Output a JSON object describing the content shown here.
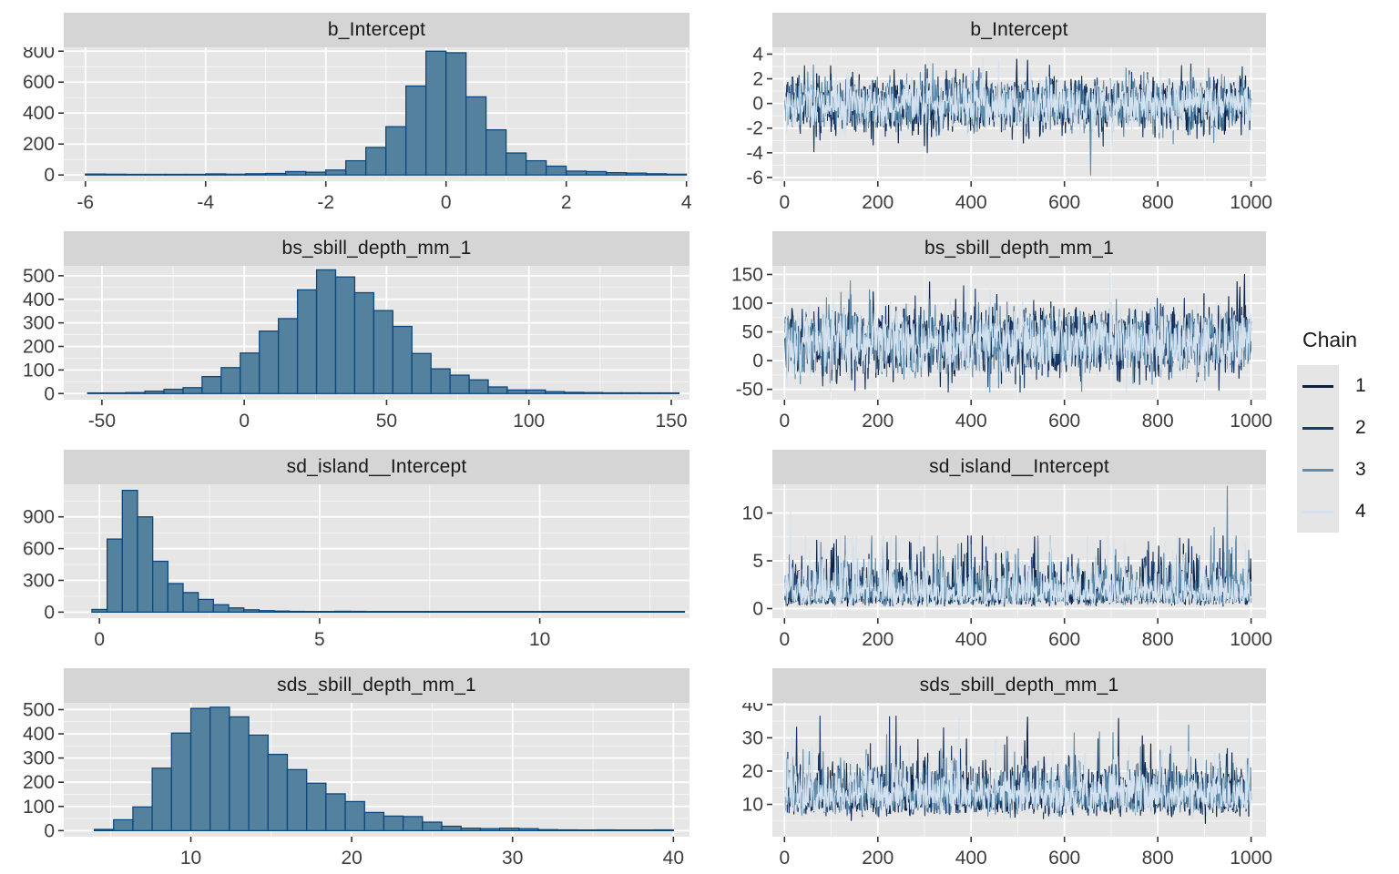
{
  "page": {
    "background": "#ffffff",
    "description": "MCMC posterior diagnostic plots (brms/bayesplot style): histograms of posterior draws (left column) and per-chain trace plots (right column) for four model parameters"
  },
  "chart_data": {
    "type": "table",
    "subtype": "mcmc-histogram-and-trace-grid",
    "grid": "4 rows x 2 columns",
    "palette": {
      "hist_fill": "#54829e",
      "hist_stroke": "#0c477e",
      "chains": [
        "#0b2144",
        "#1a3a69",
        "#5f8dac",
        "#d3e2ee"
      ],
      "panel_bg": "#e6e6e6",
      "grid_major": "#ffffff",
      "strip_bg": "#d5d5d5",
      "axis_text": "#3d3d3d"
    },
    "legend": {
      "title": "Chain",
      "entries": [
        {
          "label": "1",
          "color": "#0b2144"
        },
        {
          "label": "2",
          "color": "#1a3a69"
        },
        {
          "label": "3",
          "color": "#5f8dac"
        },
        {
          "label": "4",
          "color": "#d3e2ee"
        }
      ]
    },
    "panels": [
      {
        "type": "histogram",
        "title": "b_Intercept",
        "xlim": [
          -6.36,
          4.05
        ],
        "ylim": [
          -40,
          825
        ],
        "xticks": [
          -6,
          -4,
          -2,
          0,
          2,
          4
        ],
        "yticks": [
          0,
          200,
          400,
          600,
          800
        ],
        "bin_start": -6.0,
        "bin_width": 0.3333,
        "counts": [
          6,
          5,
          3,
          4,
          3,
          3,
          7,
          5,
          8,
          10,
          22,
          18,
          32,
          92,
          178,
          312,
          575,
          800,
          790,
          505,
          292,
          142,
          92,
          57,
          25,
          22,
          15,
          12,
          8,
          5
        ]
      },
      {
        "type": "trace",
        "title": "b_Intercept",
        "xlim": [
          -26,
          1032
        ],
        "ylim": [
          -6.3,
          4.55
        ],
        "xticks": [
          0,
          200,
          400,
          600,
          800,
          1000
        ],
        "yticks": [
          -6,
          -4,
          -2,
          0,
          2,
          4
        ],
        "n_iterations": 1000,
        "chains": 4,
        "seed": 101,
        "model": {
          "dist": "normal",
          "mu": -0.05,
          "sigma": 1.05,
          "clamp": [
            -6.0,
            4.2
          ]
        },
        "features": [
          {
            "chain": 3,
            "iter": 655,
            "value": -5.8
          },
          {
            "chain": 1,
            "iter": 497,
            "value": 3.6
          },
          {
            "chain": 1,
            "iter": 520,
            "value": 3.5
          },
          {
            "chain": 2,
            "iter": 305,
            "value": -4.0
          }
        ]
      },
      {
        "type": "histogram",
        "title": "bs_sbill_depth_mm_1",
        "xlim": [
          -63.4,
          156.4
        ],
        "ylim": [
          -26,
          542
        ],
        "xticks": [
          -50,
          0,
          50,
          100,
          150
        ],
        "yticks": [
          0,
          100,
          200,
          300,
          400,
          500
        ],
        "bin_start": -55,
        "bin_width": 6.7,
        "counts": [
          2,
          2,
          4,
          10,
          18,
          25,
          72,
          110,
          172,
          265,
          318,
          440,
          525,
          495,
          428,
          352,
          285,
          170,
          105,
          78,
          58,
          28,
          15,
          15,
          8,
          5,
          4,
          3,
          3,
          2,
          2
        ]
      },
      {
        "type": "trace",
        "title": "bs_sbill_depth_mm_1",
        "xlim": [
          -26,
          1032
        ],
        "ylim": [
          -68,
          165
        ],
        "xticks": [
          0,
          200,
          400,
          600,
          800,
          1000
        ],
        "yticks": [
          -50,
          0,
          50,
          100,
          150
        ],
        "n_iterations": 1000,
        "chains": 4,
        "seed": 202,
        "model": {
          "dist": "normal",
          "mu": 33,
          "sigma": 29,
          "clamp": [
            -55,
            153
          ]
        },
        "features": [
          {
            "chain": 1,
            "iter": 985,
            "value": 150
          },
          {
            "chain": 1,
            "iter": 975,
            "value": 128
          },
          {
            "chain": 2,
            "iter": 150,
            "value": -52
          },
          {
            "chain": 3,
            "iter": 140,
            "value": 139
          },
          {
            "chain": 1,
            "iter": 310,
            "value": 137
          },
          {
            "chain": 4,
            "iter": 390,
            "value": 125
          }
        ]
      },
      {
        "type": "histogram",
        "title": "sd_island__Intercept",
        "xlim": [
          -0.81,
          13.4
        ],
        "ylim": [
          -57,
          1207
        ],
        "xticks": [
          0,
          5,
          10
        ],
        "yticks": [
          0,
          300,
          600,
          900
        ],
        "bin_start": -0.17,
        "bin_width": 0.345,
        "counts": [
          25,
          690,
          1150,
          900,
          480,
          270,
          185,
          120,
          70,
          40,
          22,
          14,
          10,
          7,
          5,
          4,
          8,
          7,
          5,
          3,
          2,
          2,
          3,
          2,
          2,
          1,
          2,
          1,
          1,
          2,
          1,
          1,
          1,
          1,
          1,
          1,
          1,
          2,
          2
        ]
      },
      {
        "type": "trace",
        "title": "sd_island__Intercept",
        "xlim": [
          -26,
          1032
        ],
        "ylim": [
          -1.0,
          13.0
        ],
        "xticks": [
          0,
          200,
          400,
          600,
          800,
          1000
        ],
        "yticks": [
          0,
          5,
          10
        ],
        "n_iterations": 1000,
        "chains": 4,
        "seed": 303,
        "model": {
          "dist": "lognormal",
          "mu": 0.47,
          "sigma": 0.63,
          "clamp": [
            0.25,
            7.6
          ]
        },
        "features": [
          {
            "chain": 4,
            "iter": 12,
            "value": 10.1
          },
          {
            "chain": 3,
            "iter": 948,
            "value": 12.8
          },
          {
            "chain": 3,
            "iter": 920,
            "value": 8.5
          },
          {
            "chain": 1,
            "iter": 535,
            "value": 7.5
          },
          {
            "chain": 4,
            "iter": 705,
            "value": 7.5
          },
          {
            "chain": 1,
            "iter": 865,
            "value": 7.3
          }
        ]
      },
      {
        "type": "histogram",
        "title": "sds_sbill_depth_mm_1",
        "xlim": [
          2.1,
          41.0
        ],
        "ylim": [
          -25,
          528
        ],
        "xticks": [
          10,
          20,
          30,
          40
        ],
        "yticks": [
          0,
          100,
          200,
          300,
          400,
          500
        ],
        "bin_start": 4.0,
        "bin_width": 1.2,
        "counts": [
          5,
          45,
          98,
          258,
          403,
          505,
          510,
          470,
          395,
          315,
          252,
          196,
          152,
          120,
          75,
          60,
          58,
          35,
          18,
          10,
          8,
          10,
          8,
          4,
          3,
          2,
          3,
          2,
          2,
          3
        ]
      },
      {
        "type": "trace",
        "title": "sds_sbill_depth_mm_1",
        "xlim": [
          -26,
          1032
        ],
        "ylim": [
          0.3,
          40.5
        ],
        "xticks": [
          0,
          200,
          400,
          600,
          800,
          1000
        ],
        "yticks": [
          10,
          20,
          30,
          40
        ],
        "n_iterations": 1000,
        "chains": 4,
        "seed": 404,
        "model": {
          "dist": "lognormal",
          "mu": 2.56,
          "sigma": 0.29,
          "clamp": [
            4.3,
            36.5
          ]
        },
        "features": [
          {
            "chain": 4,
            "iter": 995,
            "value": 40.0
          },
          {
            "chain": 2,
            "iter": 25,
            "value": 33.2
          },
          {
            "chain": 1,
            "iter": 520,
            "value": 36.2
          },
          {
            "chain": 1,
            "iter": 715,
            "value": 35.8
          },
          {
            "chain": 2,
            "iter": 340,
            "value": 33.0
          },
          {
            "chain": 3,
            "iter": 620,
            "value": 31.5
          }
        ]
      }
    ]
  }
}
